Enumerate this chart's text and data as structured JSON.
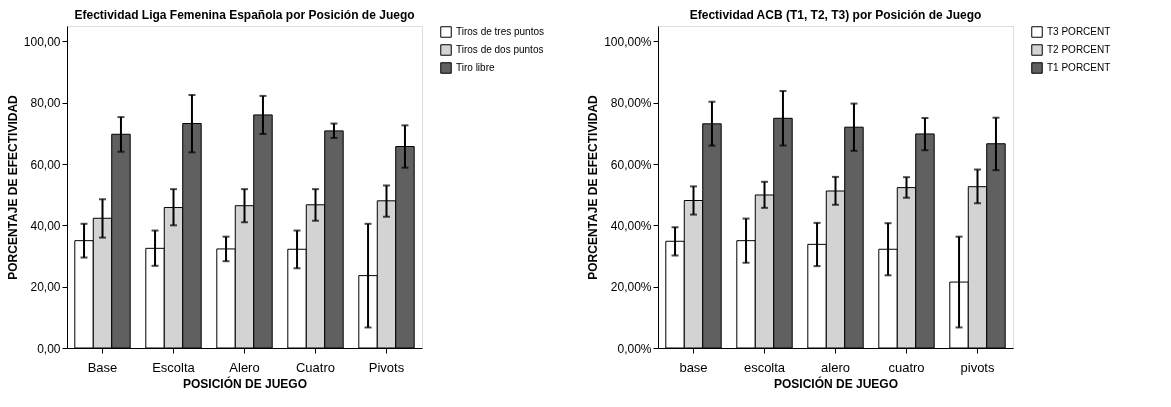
{
  "chart_data": [
    {
      "type": "bar",
      "title": "Efectividad Liga Femenina Española por Posición de Juego",
      "xlabel": "POSICIÓN DE JUEGO",
      "ylabel": "PORCENTAJE DE EFECTIVIDAD",
      "categories": [
        "Base",
        "Escolta",
        "Alero",
        "Cuatro",
        "Pivots"
      ],
      "series": [
        {
          "name": "Tiros de tres puntos",
          "color": "#ffffff",
          "values": [
            35,
            32.5,
            32.3,
            32.2,
            23.6
          ],
          "errors": [
            [
              29.5,
              40.5
            ],
            [
              26.8,
              38.3
            ],
            [
              28.3,
              36.3
            ],
            [
              26,
              38.3
            ],
            [
              6.7,
              40.5
            ]
          ]
        },
        {
          "name": "Tiros de dos puntos",
          "color": "#d3d3d3",
          "values": [
            42.3,
            45.8,
            46.4,
            46.7,
            48
          ],
          "errors": [
            [
              36,
              48.5
            ],
            [
              40,
              51.8
            ],
            [
              41,
              51.8
            ],
            [
              41.5,
              51.8
            ],
            [
              42.8,
              53
            ]
          ]
        },
        {
          "name": "Tiro libre",
          "color": "#606060",
          "values": [
            69.7,
            73.2,
            76,
            70.8,
            65.7
          ],
          "errors": [
            [
              64,
              75.3
            ],
            [
              63.8,
              82.5
            ],
            [
              69.8,
              82.2
            ],
            [
              68.5,
              73.2
            ],
            [
              58.8,
              72.6
            ]
          ]
        }
      ],
      "ylim": [
        0,
        105
      ],
      "yticks": [
        {
          "value": 0,
          "label": "0,00"
        },
        {
          "value": 20,
          "label": "20,00"
        },
        {
          "value": 40,
          "label": "40,00"
        },
        {
          "value": 60,
          "label": "60,00"
        },
        {
          "value": 80,
          "label": "80,00"
        },
        {
          "value": 100,
          "label": "100,00"
        }
      ],
      "grid": false,
      "legend": "top right"
    },
    {
      "type": "bar",
      "title": "Efectividad ACB (T1, T2, T3) por Posición de Juego",
      "xlabel": "POSICIÓN DE JUEGO",
      "ylabel": "PORCENTAJE DE EFECTIVIDAD",
      "categories": [
        "base",
        "escolta",
        "alero",
        "cuatro",
        "pivots"
      ],
      "series": [
        {
          "name": "T3 PORCENT",
          "color": "#ffffff",
          "values": [
            34.8,
            35,
            33.8,
            32.2,
            21.5
          ],
          "errors": [
            [
              30.2,
              39.4
            ],
            [
              27.8,
              42.2
            ],
            [
              26.7,
              40.8
            ],
            [
              23.7,
              40.7
            ],
            [
              6.7,
              36.3
            ]
          ]
        },
        {
          "name": "T2 PORCENT",
          "color": "#d3d3d3",
          "values": [
            48.1,
            49.9,
            51.2,
            52.3,
            52.6
          ],
          "errors": [
            [
              43.5,
              52.7
            ],
            [
              45.7,
              54.2
            ],
            [
              46.7,
              55.8
            ],
            [
              49,
              55.7
            ],
            [
              47.2,
              58.2
            ]
          ]
        },
        {
          "name": "T1 PORCENT",
          "color": "#606060",
          "values": [
            73.1,
            74.9,
            72,
            69.8,
            66.6
          ],
          "errors": [
            [
              66,
              80.3
            ],
            [
              66,
              83.8
            ],
            [
              64.3,
              79.7
            ],
            [
              64.5,
              75
            ],
            [
              58,
              75.1
            ]
          ]
        }
      ],
      "ylim": [
        0,
        105
      ],
      "yticks": [
        {
          "value": 0,
          "label": "0,00%"
        },
        {
          "value": 20,
          "label": "20,00%"
        },
        {
          "value": 40,
          "label": "40,00%"
        },
        {
          "value": 60,
          "label": "60,00%"
        },
        {
          "value": 80,
          "label": "80,00%"
        },
        {
          "value": 100,
          "label": "100,00%"
        }
      ],
      "grid": false,
      "legend": "top right"
    }
  ]
}
